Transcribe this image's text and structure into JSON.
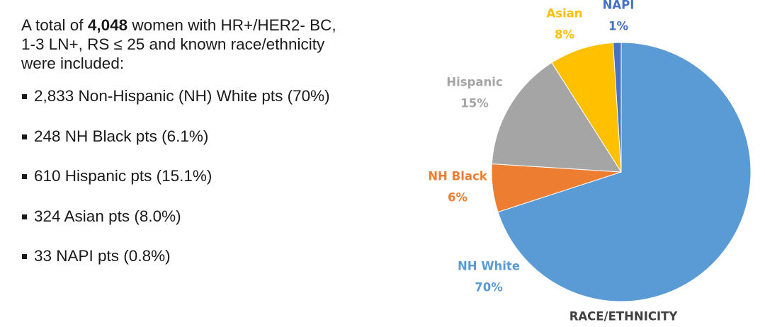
{
  "intro": {
    "prefix": "A total of",
    "count": "4,048",
    "lines": [
      "women with HR+/HER2- BC,",
      "1-3 LN+, RS ≤ 25 and known race/ethnicity",
      "were included:"
    ]
  },
  "bullets": [
    "2,833 Non-Hispanic (NH) White pts (70%)",
    "248 NH Black pts (6.1%)",
    "610 Hispanic pts (15.1%)",
    "324 Asian pts (8.0%)",
    "33 NAPI pts (0.8%)"
  ],
  "chart_data": {
    "type": "pie",
    "title": "RACE/ETHNICITY",
    "categories": [
      "NH White",
      "NH Black",
      "Hispanic",
      "Asian",
      "NAPI"
    ],
    "values": [
      70,
      6,
      15,
      8,
      1
    ],
    "value_labels": [
      "70%",
      "6%",
      "15%",
      "8%",
      "1%"
    ],
    "colors": [
      "#5b9bd5",
      "#ed7d31",
      "#a5a5a5",
      "#ffc000",
      "#4472c4"
    ]
  }
}
